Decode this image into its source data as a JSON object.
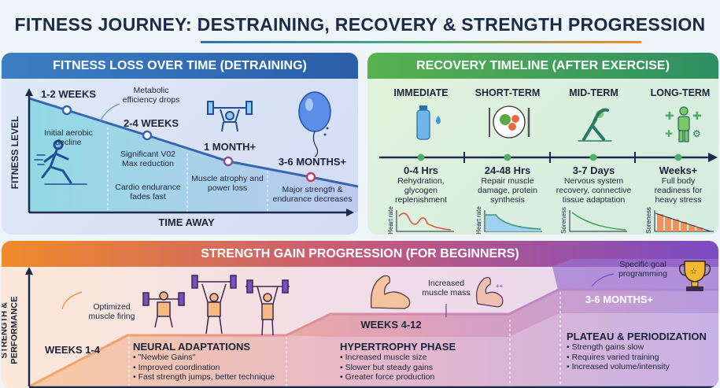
{
  "title": "FITNESS JOURNEY: DESTRAINING, RECOVERY & STRENGTH PROGRESSION",
  "detraining": {
    "header": "FITNESS LOSS OVER TIME (DETRAINING)",
    "y_axis": "FITNESS LEVEL",
    "x_axis": "TIME AWAY",
    "stages": [
      {
        "label": "1-2 WEEKS",
        "desc": "Initial aerobic decline",
        "note": "Metabolic efficiency drops"
      },
      {
        "label": "2-4 WEEKS",
        "desc": "Significant V02 Max reduction",
        "note": "Cardio endurance fades fast"
      },
      {
        "label": "1 MONTH+",
        "desc": "Muscle atrophy and power loss"
      },
      {
        "label": "3-6 MONTHS+",
        "desc": "Major strength & endurance decreases"
      }
    ],
    "icons": [
      "runner-icon",
      "weightlifter-icon",
      "deflating-balloon-icon"
    ],
    "accent": "#2f6fb5"
  },
  "recovery": {
    "header": "RECOVERY TIMELINE (AFTER EXERCISE)",
    "stages": [
      {
        "phase": "IMMEDIATE",
        "time": "0-4 Hrs",
        "desc": "Rehydration, glycogen replenishment",
        "chart_label": "Heart rate",
        "icon": "water-bottle-icon"
      },
      {
        "phase": "SHORT-TERM",
        "time": "24-48 Hrs",
        "desc": "Repair muscle damage, protein synthesis",
        "chart_label": "Heart rate",
        "icon": "meal-plate-icon"
      },
      {
        "phase": "MID-TERM",
        "time": "3-7 Days",
        "desc": "Nervous system recovery, connective tissue adaptation",
        "chart_label": "Soreness",
        "icon": "stretching-icon"
      },
      {
        "phase": "LONG-TERM",
        "time": "Weeks+",
        "desc": "Full body readiness for heavy stress",
        "chart_label": "Soreness",
        "icon": "healthy-body-icon"
      }
    ],
    "accent": "#3f9a5a"
  },
  "strength": {
    "header": "STRENGTH GAIN PROGRESSION (FOR BEGINNERS)",
    "y_axis": "STRENGTH & PERFORMANCE",
    "weeks1": "WEEKS 1-4",
    "note1": "Optimized muscle firing",
    "phase1": {
      "title": "NEURAL ADAPTATIONS",
      "items": [
        "\"Newbie Gains\"",
        "Improved coordination",
        "Fast strength jumps, better technique"
      ]
    },
    "weeks2": "WEEKS 4-12",
    "note2": "Increased muscle mass",
    "phase2": {
      "title": "HYPERTROPHY PHASE",
      "items": [
        "Increased muscle size",
        "Slower but steady gains",
        "Greater force production"
      ]
    },
    "weeks3": "3-6 MONTHS+",
    "note3": "Specific goal programming",
    "phase3": {
      "title": "PLATEAU & PERIODIZATION",
      "items": [
        "Strength gains slow",
        "Requires varied training",
        "Increased volume/intensity"
      ]
    },
    "colors": {
      "start": "#f08a2a",
      "end": "#7b4cc2"
    }
  }
}
